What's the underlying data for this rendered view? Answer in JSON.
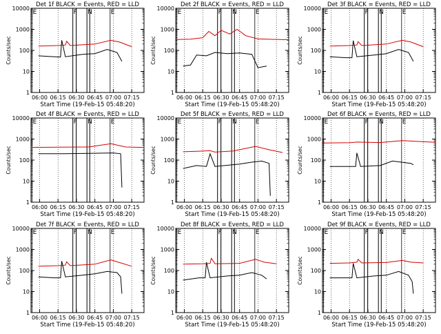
{
  "colors": {
    "events": "#000000",
    "lld": "#d40000",
    "axis": "#000000"
  },
  "chart_data": [
    {
      "type": "line",
      "title": "Det 1f BLACK = Events, RED = LLD",
      "ylabel": "Counts/sec",
      "xlabel": "Start Time (19-Feb-15 05:48:20)",
      "yscale": "log",
      "ylim": [
        1,
        10000
      ],
      "xlim": [
        "05:53",
        "07:25"
      ],
      "grid": "vertical dotted",
      "x_ticks": [
        "06:00",
        "06:15",
        "06:30",
        "06:45",
        "07:00",
        "07:15"
      ],
      "y_ticks": [
        "1",
        "10",
        "100",
        "1000",
        "10000"
      ],
      "markers": [
        "E",
        "F",
        "N",
        "E"
      ],
      "series": [
        {
          "name": "Events",
          "x": [
            "05:59",
            "06:12",
            "06:17",
            "06:18",
            "06:21",
            "06:35",
            "06:45",
            "06:55",
            "07:03",
            "07:07"
          ],
          "y": [
            55,
            50,
            48,
            300,
            50,
            65,
            70,
            110,
            80,
            30
          ]
        },
        {
          "name": "LLD",
          "x": [
            "05:59",
            "06:15",
            "06:21",
            "06:22",
            "06:25",
            "06:45",
            "06:58",
            "07:05",
            "07:15"
          ],
          "y": [
            160,
            170,
            180,
            270,
            170,
            200,
            300,
            250,
            150
          ]
        }
      ]
    },
    {
      "type": "line",
      "title": "Det 2f BLACK = Events, RED = LLD",
      "ylabel": "Counts/sec",
      "xlabel": "Start Time (19-Feb-15 05:48:20)",
      "yscale": "log",
      "ylim": [
        1,
        10000
      ],
      "xlim": [
        "05:53",
        "07:25"
      ],
      "grid": "vertical dotted",
      "x_ticks": [
        "06:00",
        "06:15",
        "06:30",
        "06:45",
        "07:00",
        "07:15"
      ],
      "y_ticks": [
        "1",
        "10",
        "100",
        "1000",
        "10000"
      ],
      "markers": [
        "E",
        "F",
        "N",
        "E"
      ],
      "series": [
        {
          "name": "Events",
          "x": [
            "05:59",
            "06:05",
            "06:10",
            "06:18",
            "06:25",
            "06:35",
            "06:45",
            "06:55",
            "07:00",
            "07:07"
          ],
          "y": [
            18,
            20,
            60,
            55,
            80,
            70,
            75,
            65,
            15,
            18
          ]
        },
        {
          "name": "LLD",
          "x": [
            "05:53",
            "06:05",
            "06:15",
            "06:20",
            "06:25",
            "06:30",
            "06:37",
            "06:43",
            "06:50",
            "07:00",
            "07:25"
          ],
          "y": [
            330,
            340,
            400,
            800,
            500,
            900,
            600,
            1000,
            500,
            350,
            320
          ]
        }
      ]
    },
    {
      "type": "line",
      "title": "Det 3f BLACK = Events, RED = LLD",
      "ylabel": "Counts/sec",
      "xlabel": "Start Time (19-Feb-15 05:48:20)",
      "yscale": "log",
      "ylim": [
        1,
        10000
      ],
      "xlim": [
        "05:53",
        "07:25"
      ],
      "grid": "vertical dotted",
      "x_ticks": [
        "06:00",
        "06:15",
        "06:30",
        "06:45",
        "07:00",
        "07:15"
      ],
      "y_ticks": [
        "1",
        "10",
        "100",
        "1000",
        "10000"
      ],
      "markers": [
        "E",
        "F",
        "N",
        "E"
      ],
      "series": [
        {
          "name": "Events",
          "x": [
            "05:59",
            "06:12",
            "06:17",
            "06:18",
            "06:21",
            "06:35",
            "06:45",
            "06:55",
            "07:03",
            "07:07"
          ],
          "y": [
            50,
            45,
            45,
            290,
            50,
            60,
            70,
            110,
            80,
            30
          ]
        },
        {
          "name": "LLD",
          "x": [
            "05:59",
            "06:15",
            "06:21",
            "06:22",
            "06:25",
            "06:45",
            "06:58",
            "07:05",
            "07:15"
          ],
          "y": [
            160,
            170,
            180,
            260,
            170,
            200,
            300,
            250,
            150
          ]
        }
      ]
    },
    {
      "type": "line",
      "title": "Det 4f BLACK = Events, RED = LLD",
      "ylabel": "Counts/sec",
      "xlabel": "Start Time (19-Feb-15 05:48:20)",
      "yscale": "log",
      "ylim": [
        1,
        10000
      ],
      "xlim": [
        "05:53",
        "07:25"
      ],
      "grid": "vertical dotted",
      "x_ticks": [
        "06:00",
        "06:15",
        "06:30",
        "06:45",
        "07:00",
        "07:15"
      ],
      "y_ticks": [
        "1",
        "10",
        "100",
        "1000",
        "10000"
      ],
      "markers": [
        "E",
        "F",
        "N",
        "E"
      ],
      "series": [
        {
          "name": "Events",
          "x": [
            "05:59",
            "06:20",
            "06:40",
            "07:00",
            "07:06",
            "07:07"
          ],
          "y": [
            200,
            200,
            210,
            220,
            200,
            5
          ]
        },
        {
          "name": "LLD",
          "x": [
            "05:53",
            "06:15",
            "06:40",
            "06:58",
            "07:10",
            "07:25"
          ],
          "y": [
            400,
            410,
            420,
            600,
            420,
            400
          ]
        }
      ]
    },
    {
      "type": "line",
      "title": "Det 5f BLACK = Events, RED = LLD",
      "ylabel": "Counts/sec",
      "xlabel": "Start Time (19-Feb-15 05:48:20)",
      "yscale": "log",
      "ylim": [
        1,
        10000
      ],
      "xlim": [
        "05:53",
        "07:25"
      ],
      "grid": "vertical dotted",
      "x_ticks": [
        "06:00",
        "06:15",
        "06:30",
        "06:45",
        "07:00",
        "07:15"
      ],
      "y_ticks": [
        "1",
        "10",
        "100",
        "1000",
        "10000"
      ],
      "markers": [
        "E",
        "F",
        "N",
        "E"
      ],
      "series": [
        {
          "name": "Events",
          "x": [
            "05:59",
            "06:10",
            "06:18",
            "06:21",
            "06:25",
            "06:45",
            "06:55",
            "07:03",
            "07:09",
            "07:10"
          ],
          "y": [
            40,
            55,
            50,
            200,
            50,
            65,
            80,
            90,
            70,
            2
          ]
        },
        {
          "name": "LLD",
          "x": [
            "05:59",
            "06:10",
            "06:21",
            "06:25",
            "06:40",
            "06:58",
            "07:10",
            "07:20"
          ],
          "y": [
            250,
            260,
            280,
            240,
            270,
            450,
            300,
            230
          ]
        }
      ]
    },
    {
      "type": "line",
      "title": "Det 6f BLACK = Events, RED = LLD",
      "ylabel": "Counts/sec",
      "xlabel": "Start Time (19-Feb-15 05:48:20)",
      "yscale": "log",
      "ylim": [
        1,
        10000
      ],
      "xlim": [
        "05:53",
        "07:25"
      ],
      "grid": "vertical dotted",
      "x_ticks": [
        "06:00",
        "06:15",
        "06:30",
        "06:45",
        "07:00",
        "07:15"
      ],
      "y_ticks": [
        "1",
        "10",
        "100",
        "1000",
        "10000"
      ],
      "markers": [
        "E",
        "F",
        "N",
        "E"
      ],
      "series": [
        {
          "name": "Events",
          "x": [
            "05:59",
            "06:15",
            "06:20",
            "06:21",
            "06:24",
            "06:40",
            "06:50",
            "07:05",
            "07:07"
          ],
          "y": [
            50,
            50,
            50,
            220,
            50,
            55,
            90,
            70,
            60
          ]
        },
        {
          "name": "LLD",
          "x": [
            "05:53",
            "06:15",
            "06:21",
            "06:40",
            "06:58",
            "07:25"
          ],
          "y": [
            650,
            670,
            720,
            680,
            850,
            700
          ]
        }
      ]
    },
    {
      "type": "line",
      "title": "Det 7f BLACK = Events, RED = LLD",
      "ylabel": "Counts/sec",
      "xlabel": "Start Time (19-Feb-15 05:48:20)",
      "yscale": "log",
      "ylim": [
        1,
        10000
      ],
      "xlim": [
        "05:53",
        "07:25"
      ],
      "grid": "vertical dotted",
      "x_ticks": [
        "06:00",
        "06:15",
        "06:30",
        "06:45",
        "07:00",
        "07:15"
      ],
      "y_ticks": [
        "1",
        "10",
        "100",
        "1000",
        "10000"
      ],
      "markers": [
        "E",
        "F",
        "N",
        "E"
      ],
      "series": [
        {
          "name": "Events",
          "x": [
            "05:59",
            "06:12",
            "06:17",
            "06:18",
            "06:21",
            "06:35",
            "06:45",
            "06:55",
            "07:03",
            "07:06",
            "07:07"
          ],
          "y": [
            50,
            45,
            45,
            280,
            50,
            60,
            70,
            90,
            80,
            50,
            8
          ]
        },
        {
          "name": "LLD",
          "x": [
            "05:59",
            "06:15",
            "06:21",
            "06:22",
            "06:25",
            "06:45",
            "06:58",
            "07:05",
            "07:15"
          ],
          "y": [
            160,
            170,
            180,
            260,
            170,
            200,
            320,
            240,
            160
          ]
        }
      ]
    },
    {
      "type": "line",
      "title": "Det 8f BLACK = Events, RED = LLD",
      "ylabel": "Counts/sec",
      "xlabel": "Start Time (19-Feb-15 05:48:20)",
      "yscale": "log",
      "ylim": [
        1,
        10000
      ],
      "xlim": [
        "05:53",
        "07:25"
      ],
      "grid": "vertical dotted",
      "x_ticks": [
        "06:00",
        "06:15",
        "06:30",
        "06:45",
        "07:00",
        "07:15"
      ],
      "y_ticks": [
        "1",
        "10",
        "100",
        "1000",
        "10000"
      ],
      "markers": [
        "E",
        "F",
        "N",
        "E"
      ],
      "series": [
        {
          "name": "Events",
          "x": [
            "05:59",
            "06:12",
            "06:17",
            "06:18",
            "06:21",
            "06:35",
            "06:45",
            "06:55",
            "07:03",
            "07:07"
          ],
          "y": [
            35,
            45,
            45,
            250,
            45,
            55,
            60,
            80,
            60,
            40
          ]
        },
        {
          "name": "LLD",
          "x": [
            "05:59",
            "06:15",
            "06:21",
            "06:22",
            "06:25",
            "06:45",
            "06:58",
            "07:05",
            "07:15"
          ],
          "y": [
            200,
            210,
            220,
            380,
            210,
            220,
            340,
            250,
            210
          ]
        }
      ]
    },
    {
      "type": "line",
      "title": "Det 9f BLACK = Events, RED = LLD",
      "ylabel": "Counts/sec",
      "xlabel": "Start Time (19-Feb-15 05:48:20)",
      "yscale": "log",
      "ylim": [
        1,
        10000
      ],
      "xlim": [
        "05:53",
        "07:25"
      ],
      "grid": "vertical dotted",
      "x_ticks": [
        "06:00",
        "06:15",
        "06:30",
        "06:45",
        "07:00",
        "07:15"
      ],
      "y_ticks": [
        "1",
        "10",
        "100",
        "1000",
        "10000"
      ],
      "markers": [
        "E",
        "F",
        "N",
        "E"
      ],
      "series": [
        {
          "name": "Events",
          "x": [
            "05:59",
            "06:12",
            "06:17",
            "06:18",
            "06:21",
            "06:35",
            "06:45",
            "06:55",
            "07:03",
            "07:06",
            "07:07"
          ],
          "y": [
            45,
            45,
            45,
            220,
            45,
            55,
            60,
            90,
            60,
            30,
            8
          ]
        },
        {
          "name": "LLD",
          "x": [
            "05:59",
            "06:15",
            "06:21",
            "06:22",
            "06:25",
            "06:45",
            "06:58",
            "07:05",
            "07:15"
          ],
          "y": [
            220,
            230,
            250,
            340,
            230,
            240,
            300,
            250,
            230
          ]
        }
      ]
    }
  ]
}
